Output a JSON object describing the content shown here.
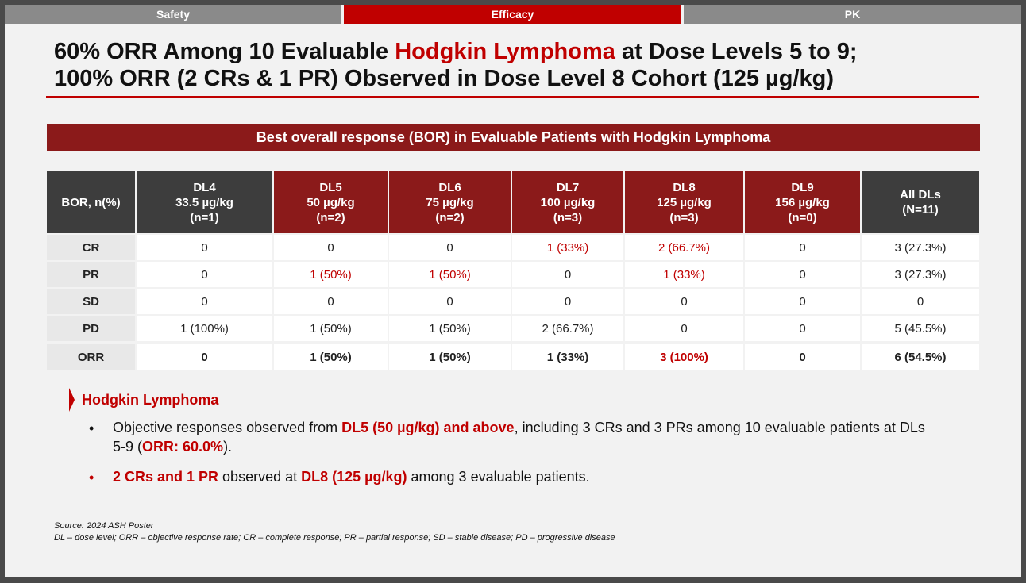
{
  "tabs": [
    {
      "label": "Safety",
      "active": false
    },
    {
      "label": "Efficacy",
      "active": true
    },
    {
      "label": "PK",
      "active": false
    }
  ],
  "headline": {
    "line1_pre": "60% ORR Among 10 Evaluable ",
    "line1_red": "Hodgkin Lymphoma",
    "line1_post": " at Dose Levels 5 to 9;",
    "line2": "100% ORR (2 CRs & 1 PR) Observed in Dose Level 8 Cohort (125 µg/kg)"
  },
  "banner": "Best overall response (BOR) in Evaluable Patients with Hodgkin Lymphoma",
  "table": {
    "headers": [
      {
        "lines": [
          "BOR, n(%)"
        ]
      },
      {
        "lines": [
          "DL4",
          "33.5 µg/kg",
          "(n=1)"
        ]
      },
      {
        "lines": [
          "DL5",
          "50 µg/kg",
          "(n=2)"
        ]
      },
      {
        "lines": [
          "DL6",
          "75 µg/kg",
          "(n=2)"
        ]
      },
      {
        "lines": [
          "DL7",
          "100 µg/kg",
          "(n=3)"
        ]
      },
      {
        "lines": [
          "DL8",
          "125 µg/kg",
          "(n=3)"
        ]
      },
      {
        "lines": [
          "DL9",
          "156 µg/kg",
          "(n=0)"
        ]
      },
      {
        "lines": [
          "All DLs",
          "(N=11)"
        ]
      }
    ],
    "rows": [
      {
        "label": "CR",
        "cells": [
          "0",
          "0",
          "0",
          "1 (33%)",
          "2 (66.7%)",
          "0",
          "3 (27.3%)"
        ]
      },
      {
        "label": "PR",
        "cells": [
          "0",
          "1 (50%)",
          "1 (50%)",
          "0",
          "1 (33%)",
          "0",
          "3 (27.3%)"
        ]
      },
      {
        "label": "SD",
        "cells": [
          "0",
          "0",
          "0",
          "0",
          "0",
          "0",
          "0"
        ]
      },
      {
        "label": "PD",
        "cells": [
          "1 (100%)",
          "1 (50%)",
          "1 (50%)",
          "2 (66.7%)",
          "0",
          "0",
          "5 (45.5%)"
        ]
      },
      {
        "label": "ORR",
        "cells": [
          "0",
          "1 (50%)",
          "1 (50%)",
          "1 (33%)",
          "3 (100%)",
          "0",
          "6 (54.5%)"
        ]
      }
    ]
  },
  "section": {
    "title": "Hodgkin Lymphoma",
    "bullet1": {
      "marker": "•",
      "t1": "Objective responses observed from ",
      "r1": "DL5 (50 µg/kg) and above",
      "t2": ", including 3 CRs and 3 PRs among 10 evaluable patients at DLs 5-9 (",
      "r2": "ORR: 60.0%",
      "t3": ")."
    },
    "bullet2": {
      "marker": "•",
      "r1": "2 CRs and 1 PR",
      "t1": " observed at ",
      "r2": "DL8 (125 µg/kg)",
      "t2": " among 3 evaluable patients."
    }
  },
  "source": {
    "line1": "Source: 2024 ASH Poster",
    "line2": "DL – dose level; ORR – objective response rate; CR – complete response; PR – partial response; SD – stable disease; PD – progressive disease"
  },
  "colors": {
    "accent": "#c00000",
    "banner": "#8b1a1a",
    "header_dark": "#3d3d3d",
    "tab_inactive": "#8a8a8a"
  }
}
